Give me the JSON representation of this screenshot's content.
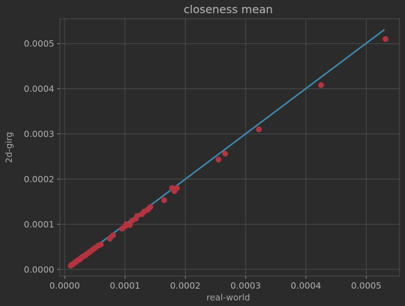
{
  "chart_data": {
    "type": "scatter",
    "title": "closeness mean",
    "xlabel": "real-world",
    "ylabel": "2d-girg",
    "xlim": [
      -8e-06,
      0.000555
    ],
    "ylim": [
      -1.5e-05,
      0.000555
    ],
    "xticks": [
      0.0,
      0.0001,
      0.0002,
      0.0003,
      0.0004,
      0.0005
    ],
    "xtick_labels": [
      "0.0000",
      "0.0001",
      "0.0002",
      "0.0003",
      "0.0004",
      "0.0005"
    ],
    "yticks": [
      0.0,
      0.0001,
      0.0002,
      0.0003,
      0.0004,
      0.0005
    ],
    "ytick_labels": [
      "0.0000",
      "0.0001",
      "0.0002",
      "0.0003",
      "0.0004",
      "0.0005"
    ],
    "grid": true,
    "colors": {
      "background": "#2b2b2b",
      "points": "#b5333f",
      "fit_line": "#3f8ab0",
      "grid": "#4a4a4a"
    },
    "series": [
      {
        "type": "scatter",
        "x": [
          1e-05,
          1.2e-05,
          1.4e-05,
          1.6e-05,
          1.8e-05,
          2e-05,
          2.2e-05,
          2.5e-05,
          2.7e-05,
          3e-05,
          3.3e-05,
          3.6e-05,
          4e-05,
          4.3e-05,
          4.7e-05,
          5e-05,
          5.5e-05,
          6e-05,
          7.5e-05,
          8e-05,
          9.5e-05,
          0.0001,
          0.000102,
          0.000108,
          0.000112,
          0.000118,
          0.00012,
          0.000128,
          0.000132,
          0.000138,
          0.000142,
          0.000165,
          0.000178,
          0.000182,
          0.000186,
          0.000255,
          0.000266,
          0.000322,
          0.000425,
          0.000532
        ],
        "y": [
          8e-06,
          1e-05,
          1.2e-05,
          1.4e-05,
          1.6e-05,
          1.8e-05,
          2e-05,
          2.2e-05,
          2.5e-05,
          2.8e-05,
          3e-05,
          3.3e-05,
          3.7e-05,
          4e-05,
          4.4e-05,
          4.7e-05,
          5.2e-05,
          5.5e-05,
          6.8e-05,
          7.5e-05,
          9e-05,
          9.5e-05,
          0.0001,
          9.8e-05,
          0.000108,
          0.000112,
          0.000118,
          0.000122,
          0.000128,
          0.000132,
          0.000138,
          0.000153,
          0.00018,
          0.000173,
          0.00018,
          0.000243,
          0.000256,
          0.00031,
          0.000408,
          0.00051
        ]
      },
      {
        "type": "line",
        "x": [
          1e-05,
          0.00053
        ],
        "y": [
          9e-06,
          0.000531
        ]
      }
    ]
  }
}
